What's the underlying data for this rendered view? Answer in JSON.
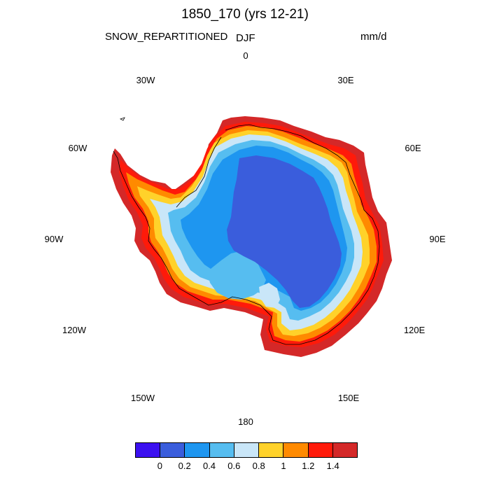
{
  "title": "1850_170 (yrs 12-21)",
  "left_label": "SNOW_REPARTITIONED",
  "center_label": "DJF",
  "units": "mm/d",
  "longitude_labels": [
    "0",
    "30E",
    "60E",
    "90E",
    "120E",
    "150E",
    "180",
    "150W",
    "120W",
    "90W",
    "60W",
    "30W"
  ],
  "colorbar": {
    "colors": [
      "#3b10f0",
      "#3a5ddc",
      "#1e96f0",
      "#56bdf0",
      "#c9e6f8",
      "#ffd22a",
      "#ff8a00",
      "#ff1a0a",
      "#d42828"
    ],
    "tick_labels": [
      "0",
      "0.2",
      "0.4",
      "0.6",
      "0.8",
      "1",
      "1.2",
      "1.4"
    ]
  },
  "map": {
    "projection": "south polar stereographic",
    "region": "Antarctica",
    "coastline": true
  }
}
